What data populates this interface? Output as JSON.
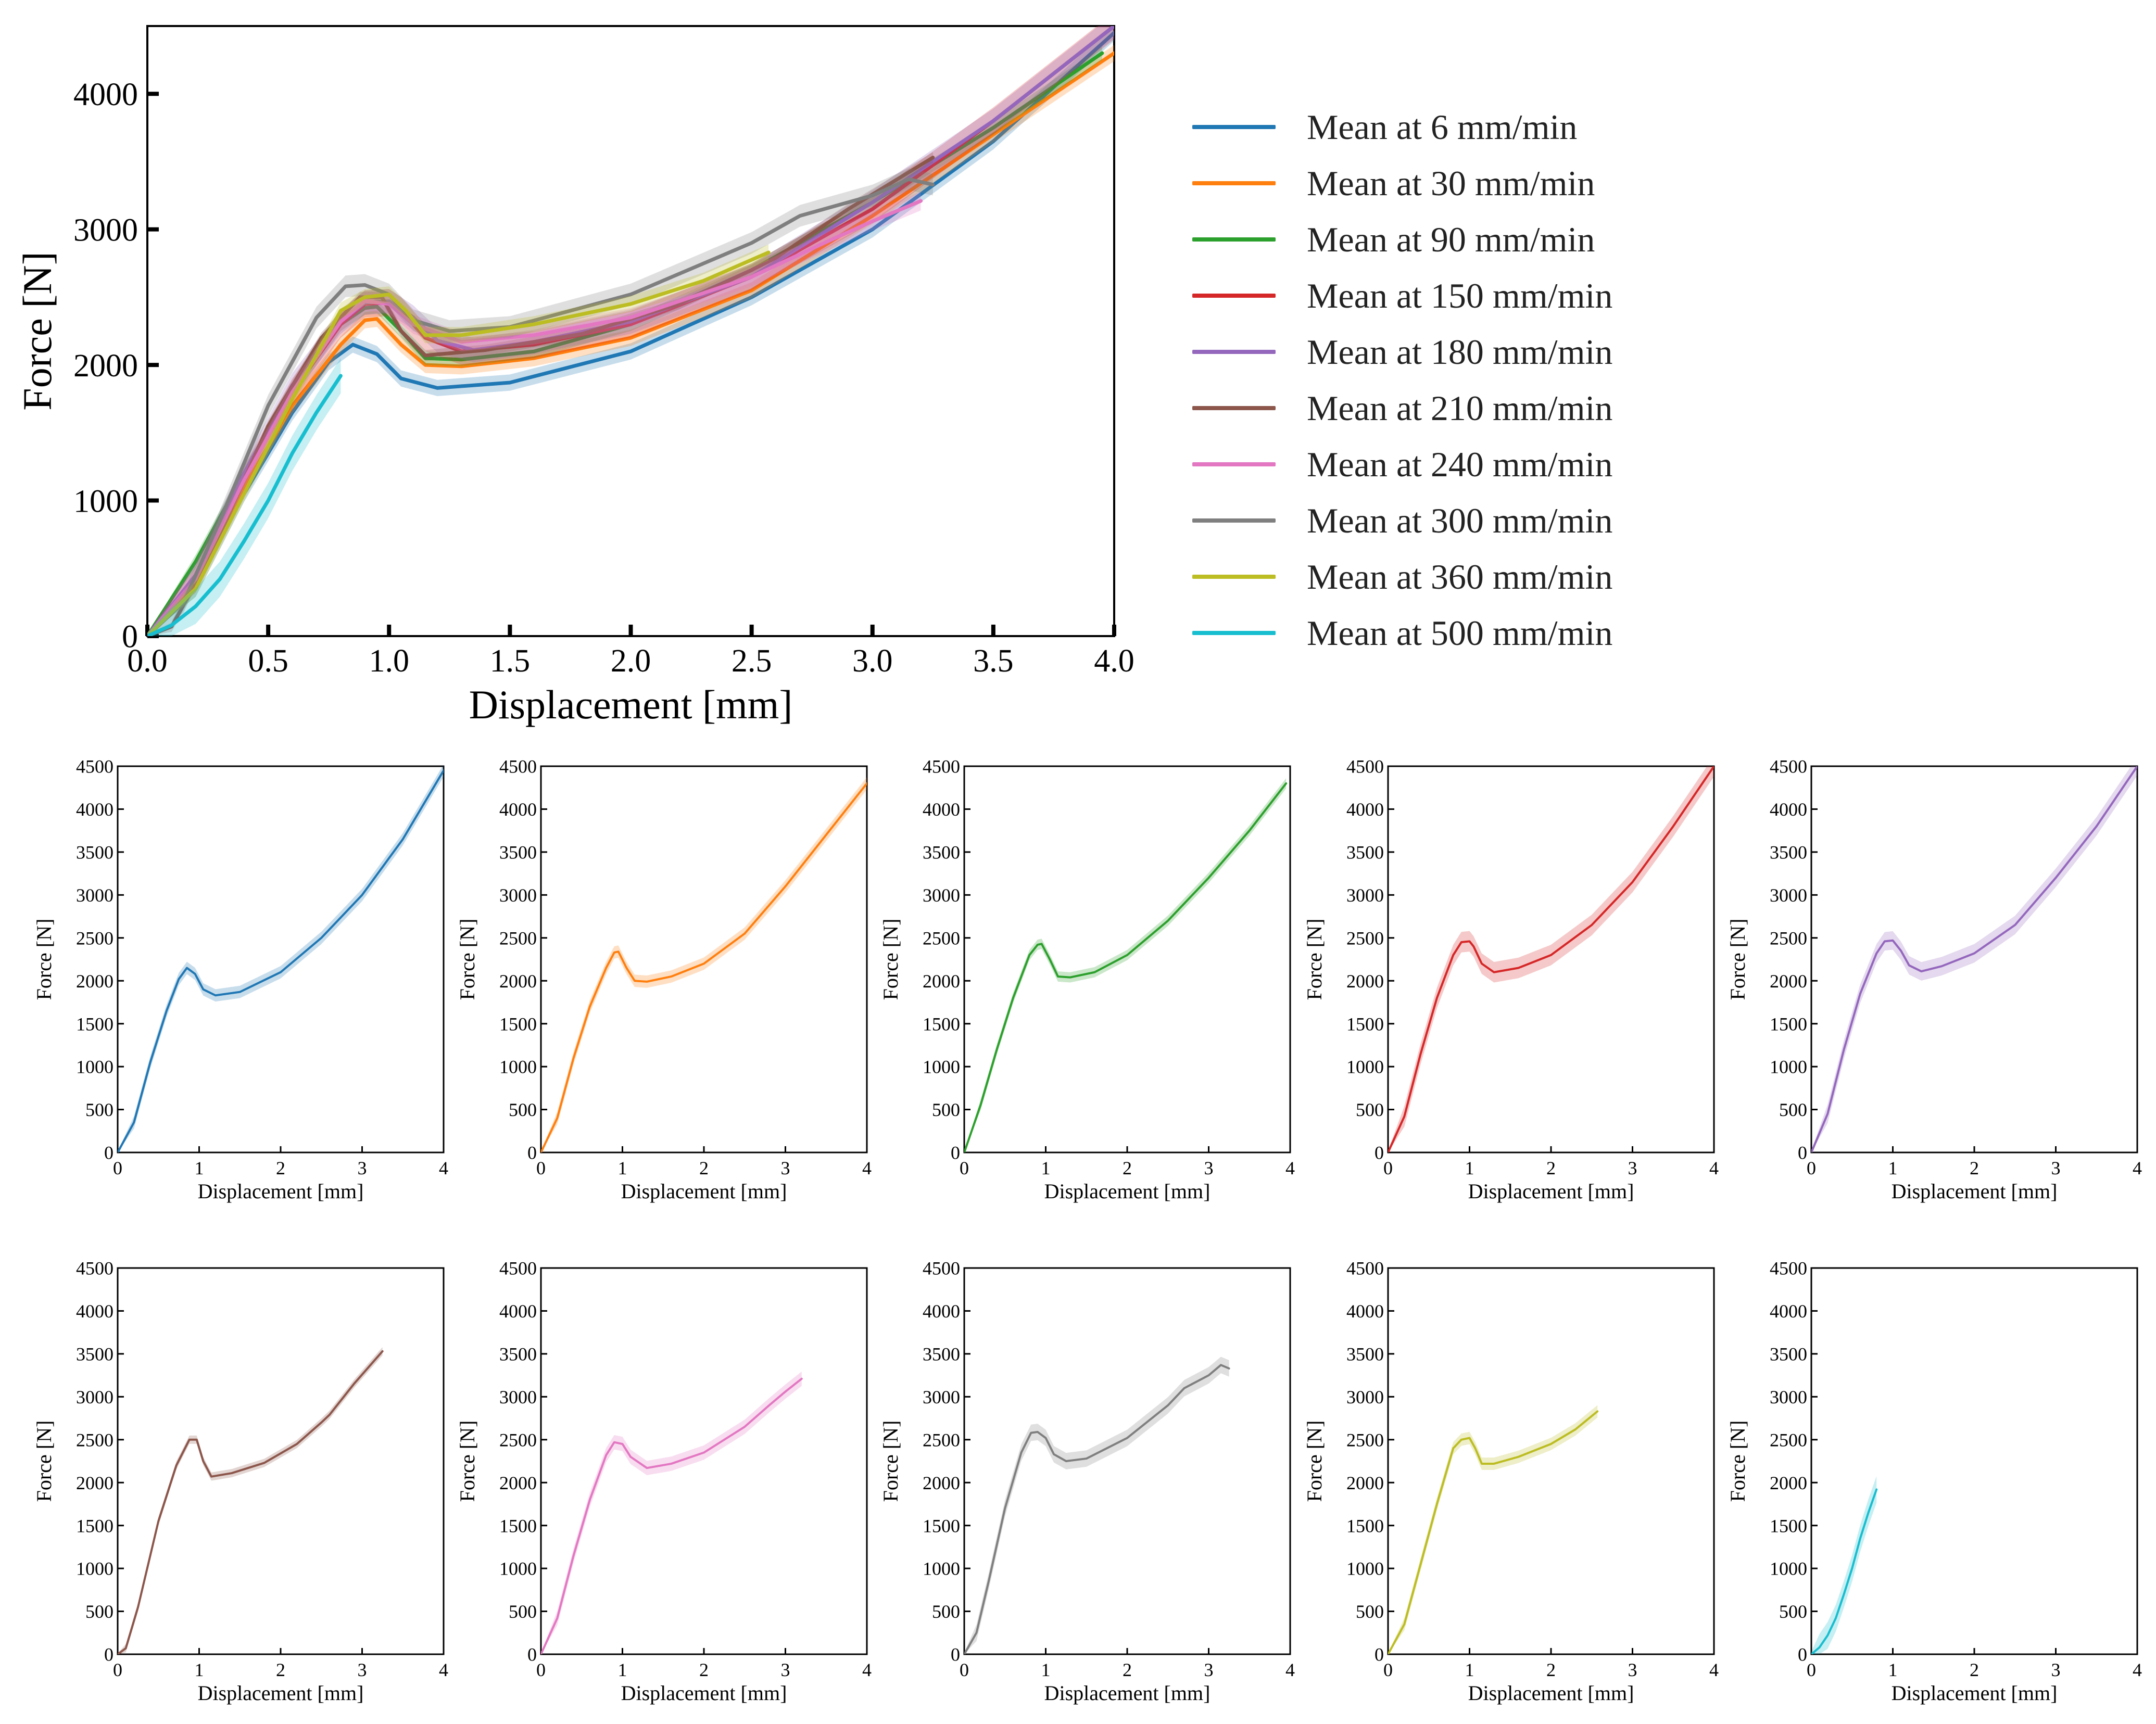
{
  "colors": {
    "6": "#1f77b4",
    "30": "#ff7f0e",
    "90": "#2ca02c",
    "150": "#d62728",
    "180": "#9467bd",
    "210": "#8c564b",
    "240": "#e377c2",
    "300": "#7f7f7f",
    "360": "#bcbd22",
    "500": "#17becf"
  },
  "chart_data": [
    {
      "id": "main",
      "type": "line",
      "xlabel": "Displacement [mm]",
      "ylabel": "Force [N]",
      "xlim": [
        0,
        4
      ],
      "ylim": [
        0,
        4500
      ],
      "xticks": [
        "0.0",
        "0.5",
        "1.0",
        "1.5",
        "2.0",
        "2.5",
        "3.0",
        "3.5",
        "4.0"
      ],
      "xtick_values": [
        0,
        0.5,
        1,
        1.5,
        2,
        2.5,
        3,
        3.5,
        4
      ],
      "yticks": [
        "0",
        "1000",
        "2000",
        "3000",
        "4000"
      ],
      "ytick_values": [
        0,
        1000,
        2000,
        3000,
        4000
      ],
      "legend_position": "right",
      "series": [
        {
          "name": "Mean at 6 mm/min",
          "key": "6",
          "x": [
            0,
            0.2,
            0.4,
            0.6,
            0.75,
            0.85,
            0.95,
            1.05,
            1.2,
            1.5,
            2.0,
            2.5,
            3.0,
            3.5,
            4.0
          ],
          "y": [
            0,
            350,
            1050,
            1650,
            2020,
            2150,
            2080,
            1900,
            1830,
            1870,
            2100,
            2500,
            3000,
            3650,
            4450
          ],
          "band": 60
        },
        {
          "name": "Mean at 30 mm/min",
          "key": "30",
          "x": [
            0,
            0.2,
            0.4,
            0.6,
            0.8,
            0.9,
            0.95,
            1.05,
            1.15,
            1.3,
            1.6,
            2.0,
            2.5,
            3.0,
            3.5,
            4.0
          ],
          "y": [
            0,
            400,
            1100,
            1700,
            2150,
            2330,
            2340,
            2150,
            2000,
            1990,
            2050,
            2200,
            2550,
            3100,
            3700,
            4300
          ],
          "band": 60
        },
        {
          "name": "Mean at 90 mm/min",
          "key": "90",
          "x": [
            0,
            0.2,
            0.4,
            0.6,
            0.8,
            0.9,
            0.95,
            1.05,
            1.15,
            1.3,
            1.6,
            2.0,
            2.5,
            3.0,
            3.5,
            3.95
          ],
          "y": [
            0,
            550,
            1200,
            1800,
            2300,
            2420,
            2430,
            2250,
            2050,
            2040,
            2100,
            2300,
            2700,
            3200,
            3750,
            4300
          ],
          "band": 50
        },
        {
          "name": "Mean at 150 mm/min",
          "key": "150",
          "x": [
            0,
            0.2,
            0.4,
            0.6,
            0.8,
            0.9,
            1.0,
            1.05,
            1.15,
            1.3,
            1.6,
            2.0,
            2.5,
            3.0,
            3.5,
            4.0
          ],
          "y": [
            0,
            420,
            1150,
            1800,
            2300,
            2450,
            2460,
            2400,
            2200,
            2100,
            2150,
            2300,
            2650,
            3150,
            3800,
            4500
          ],
          "band": 100
        },
        {
          "name": "Mean at 180 mm/min",
          "key": "180",
          "x": [
            0,
            0.2,
            0.4,
            0.6,
            0.8,
            0.9,
            1.0,
            1.1,
            1.2,
            1.35,
            1.6,
            2.0,
            2.5,
            3.0,
            3.5,
            4.0
          ],
          "y": [
            0,
            450,
            1200,
            1850,
            2320,
            2460,
            2470,
            2350,
            2180,
            2110,
            2170,
            2320,
            2650,
            3200,
            3800,
            4500
          ],
          "band": 90
        },
        {
          "name": "Mean at 210 mm/min",
          "key": "210",
          "x": [
            0,
            0.1,
            0.25,
            0.5,
            0.72,
            0.88,
            0.97,
            1.05,
            1.15,
            1.4,
            1.8,
            2.2,
            2.5,
            2.6,
            2.9,
            3.25
          ],
          "y": [
            0,
            70,
            550,
            1550,
            2200,
            2500,
            2500,
            2250,
            2070,
            2110,
            2230,
            2450,
            2700,
            2790,
            3150,
            3530
          ],
          "band": 40
        },
        {
          "name": "Mean at 240 mm/min",
          "key": "240",
          "x": [
            0,
            0.2,
            0.4,
            0.6,
            0.8,
            0.9,
            1.0,
            1.1,
            1.3,
            1.6,
            2.0,
            2.5,
            2.8,
            3.0,
            3.2
          ],
          "y": [
            0,
            420,
            1150,
            1800,
            2320,
            2470,
            2450,
            2300,
            2170,
            2220,
            2350,
            2650,
            2900,
            3060,
            3210
          ],
          "band": 70
        },
        {
          "name": "Mean at 300 mm/min",
          "key": "300",
          "x": [
            0,
            0.15,
            0.3,
            0.5,
            0.7,
            0.82,
            0.9,
            1.0,
            1.1,
            1.25,
            1.5,
            2.0,
            2.5,
            2.7,
            3.0,
            3.15,
            3.25
          ],
          "y": [
            0,
            250,
            850,
            1700,
            2350,
            2580,
            2590,
            2520,
            2330,
            2250,
            2280,
            2520,
            2900,
            3100,
            3250,
            3370,
            3330
          ],
          "band": 80
        },
        {
          "name": "Mean at 360 mm/min",
          "key": "360",
          "x": [
            0,
            0.2,
            0.4,
            0.6,
            0.8,
            0.9,
            1.0,
            1.07,
            1.15,
            1.3,
            1.6,
            2.0,
            2.3,
            2.57
          ],
          "y": [
            0,
            350,
            1050,
            1750,
            2400,
            2500,
            2520,
            2400,
            2220,
            2220,
            2300,
            2450,
            2620,
            2830
          ],
          "band": 60
        },
        {
          "name": "Mean at 500 mm/min",
          "key": "500",
          "x": [
            0,
            0.1,
            0.2,
            0.3,
            0.4,
            0.5,
            0.6,
            0.7,
            0.8
          ],
          "y": [
            0,
            80,
            220,
            420,
            700,
            1000,
            1350,
            1650,
            1920
          ],
          "band": 130
        }
      ]
    },
    {
      "id": "small",
      "type": "line",
      "xlabel": "Displacement [mm]",
      "ylabel": "Force [N]",
      "xlim": [
        0,
        4
      ],
      "ylim": [
        0,
        4500
      ],
      "xticks": [
        "0",
        "1",
        "2",
        "3",
        "4"
      ],
      "xtick_values": [
        0,
        1,
        2,
        3,
        4
      ],
      "yticks": [
        "0",
        "500",
        "1000",
        "1500",
        "2000",
        "2500",
        "3000",
        "3500",
        "4000",
        "4500"
      ],
      "ytick_values": [
        0,
        500,
        1000,
        1500,
        2000,
        2500,
        3000,
        3500,
        4000,
        4500
      ],
      "panels": [
        "6",
        "30",
        "90",
        "150",
        "180",
        "210",
        "240",
        "300",
        "360",
        "500"
      ]
    }
  ]
}
